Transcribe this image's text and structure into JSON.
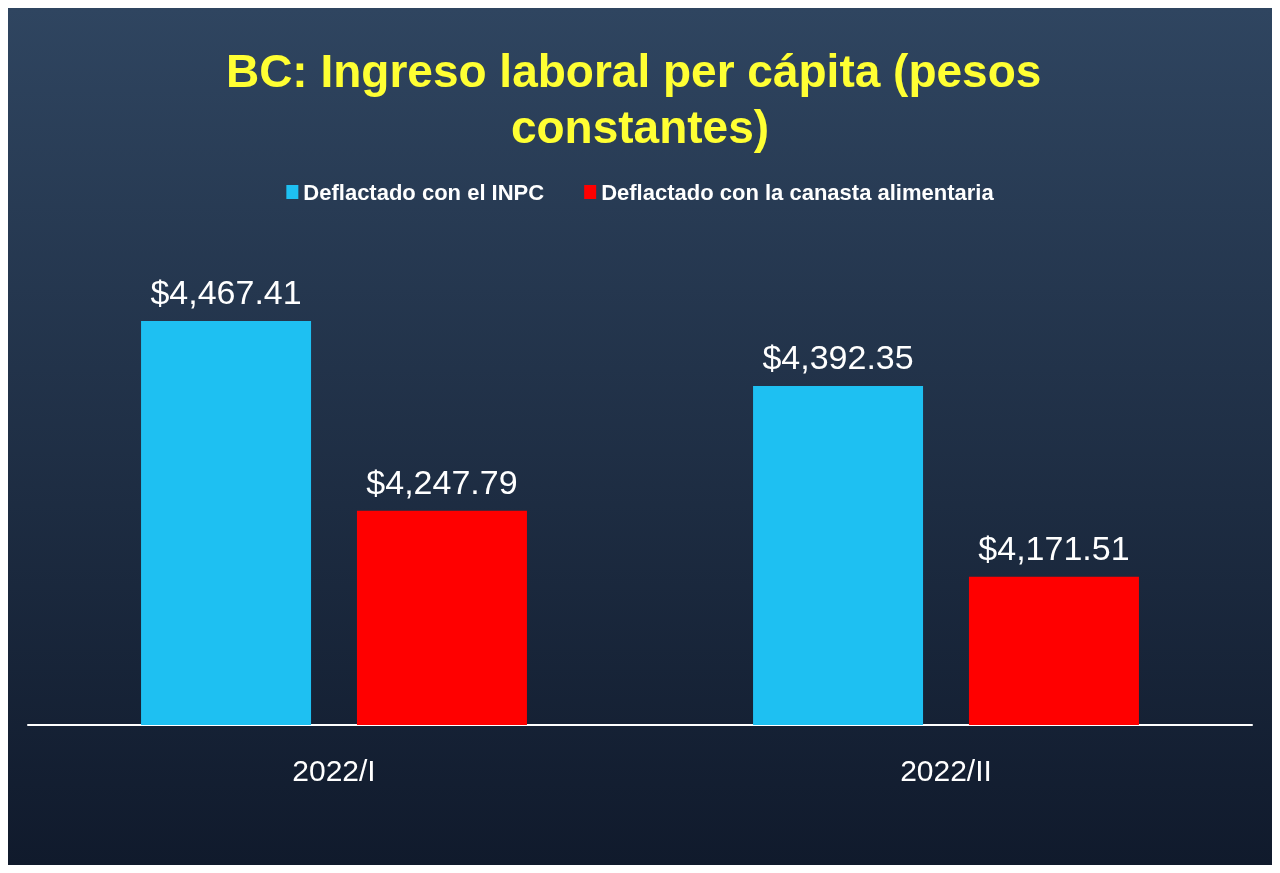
{
  "chart_data": {
    "type": "bar",
    "title": "BC: Ingreso laboral per cápita (pesos constantes)",
    "categories": [
      "2022/I",
      "2022/II"
    ],
    "series": [
      {
        "name": "Deflactado con el INPC",
        "color": "#1ec0f2",
        "values": [
          4467.41,
          4392.35
        ],
        "value_labels": [
          "$4,467.41",
          "$4,392.35"
        ]
      },
      {
        "name": "Deflactado con la canasta alimentaria",
        "color": "#ff0000",
        "values": [
          4247.79,
          4171.51
        ],
        "value_labels": [
          "$4,247.79",
          "$4,171.51"
        ]
      }
    ],
    "ylim": [
      4000,
      4467.41
    ],
    "tick_labels": "x",
    "grid": false,
    "legend": "top"
  }
}
